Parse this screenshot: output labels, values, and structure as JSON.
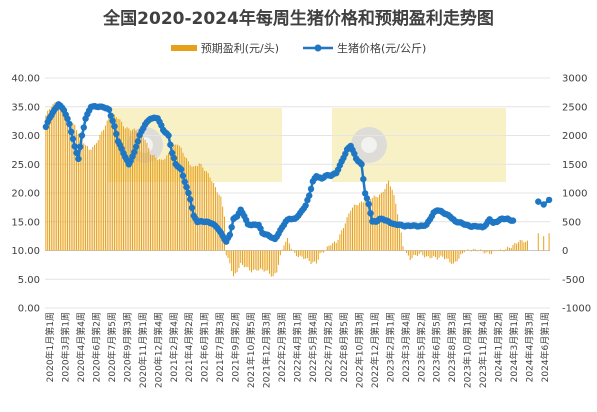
{
  "chart_data": {
    "type": "bar+line",
    "title": "全国2020-2024年每周生猪价格和预期盈利走势图",
    "legend": [
      {
        "name": "预期盈利(元/头)",
        "type": "bar",
        "color": "#E8A018"
      },
      {
        "name": "生猪价格(元/公斤)",
        "type": "line",
        "color": "#1F77C4"
      }
    ],
    "legend_position": "top",
    "y_left": {
      "ylim": [
        0,
        40
      ],
      "ticks": [
        "0.00",
        "5.00",
        "10.00",
        "15.00",
        "20.00",
        "25.00",
        "30.00",
        "35.00",
        "40.00"
      ]
    },
    "y_right": {
      "ylim": [
        -1000,
        3000
      ],
      "ticks": [
        "-1000",
        "-500",
        "0",
        "500",
        "1000",
        "1500",
        "2000",
        "2500",
        "3000"
      ]
    },
    "x_tick_labels": [
      "2020年1月第1周",
      "2020年3月第1周",
      "2020年4月第4周",
      "2020年6月第2周",
      "2020年7月第5周",
      "2020年9月第3周",
      "2020年11月第1周",
      "2020年12月第4周",
      "2021年2月第4周",
      "2021年4月第2周",
      "2021年6月第1周",
      "2021年7月第3周",
      "2021年9月第2周",
      "2021年10月第5周",
      "2021年12月第3周",
      "2022年2月第3周",
      "2022年4月第1周",
      "2022年5月第4周",
      "2022年7月第2周",
      "2022年8月第5周",
      "2022年10月第3周",
      "2022年12月第1周",
      "2023年2月第1周",
      "2023年3月第4周",
      "2023年5月第2周",
      "2023年6月第5周",
      "2023年8月第3周",
      "2023年10月第1周",
      "2023年11月第4周",
      "2024年1月第2周",
      "2024年3月第1周",
      "2024年4月第3周",
      "2024年6月第1周"
    ],
    "price_anchors": [
      [
        0,
        31.5
      ],
      [
        2,
        33
      ],
      [
        5,
        34.5
      ],
      [
        7,
        35.5
      ],
      [
        10,
        34.5
      ],
      [
        13,
        32
      ],
      [
        16,
        28
      ],
      [
        18,
        26
      ],
      [
        20,
        30
      ],
      [
        22,
        33
      ],
      [
        25,
        35
      ],
      [
        28,
        35
      ],
      [
        32,
        35
      ],
      [
        35,
        34.5
      ],
      [
        38,
        31.5
      ],
      [
        40,
        29
      ],
      [
        43,
        27
      ],
      [
        46,
        25
      ],
      [
        49,
        27
      ],
      [
        52,
        30
      ],
      [
        55,
        32
      ],
      [
        58,
        33
      ],
      [
        62,
        33
      ],
      [
        65,
        31
      ],
      [
        68,
        30
      ],
      [
        70,
        27
      ],
      [
        72,
        25
      ],
      [
        75,
        24
      ],
      [
        78,
        21
      ],
      [
        80,
        19
      ],
      [
        82,
        16
      ],
      [
        84,
        15
      ],
      [
        86,
        15
      ],
      [
        89,
        15
      ],
      [
        92,
        14.8
      ],
      [
        95,
        14
      ],
      [
        98,
        12.5
      ],
      [
        100,
        11.5
      ],
      [
        102,
        12.8
      ],
      [
        104,
        15.5
      ],
      [
        106,
        16
      ],
      [
        108,
        17
      ],
      [
        110,
        16
      ],
      [
        112,
        14.5
      ],
      [
        115,
        14.5
      ],
      [
        118,
        14.5
      ],
      [
        120,
        13
      ],
      [
        124,
        12.5
      ],
      [
        127,
        12
      ],
      [
        130,
        13.5
      ],
      [
        133,
        15
      ],
      [
        135,
        15.5
      ],
      [
        138,
        15.5
      ],
      [
        141,
        16.5
      ],
      [
        144,
        17.8
      ],
      [
        146,
        19.5
      ],
      [
        148,
        22
      ],
      [
        150,
        23
      ],
      [
        153,
        22.5
      ],
      [
        155,
        23
      ],
      [
        158,
        23
      ],
      [
        161,
        23.5
      ],
      [
        164,
        25.5
      ],
      [
        167,
        27.5
      ],
      [
        169,
        28.2
      ],
      [
        172,
        26
      ],
      [
        175,
        25
      ],
      [
        177,
        20
      ],
      [
        179,
        18
      ],
      [
        181,
        15
      ],
      [
        183,
        15
      ],
      [
        185,
        15.5
      ],
      [
        187,
        15.5
      ],
      [
        190,
        15
      ],
      [
        193,
        14.5
      ],
      [
        196,
        14.5
      ],
      [
        199,
        14.3
      ],
      [
        203,
        14.3
      ],
      [
        207,
        14.2
      ],
      [
        211,
        14.5
      ],
      [
        215,
        16.5
      ],
      [
        217,
        17
      ],
      [
        219,
        16.8
      ],
      [
        221,
        16.5
      ],
      [
        224,
        16
      ],
      [
        227,
        15
      ],
      [
        230,
        14.8
      ],
      [
        233,
        14.5
      ],
      [
        236,
        14.2
      ],
      [
        239,
        14.2
      ],
      [
        242,
        14
      ],
      [
        244,
        14.5
      ],
      [
        246,
        15.5
      ],
      [
        248,
        14.8
      ],
      [
        250,
        15
      ],
      [
        253,
        15.5
      ],
      [
        256,
        15.5
      ],
      [
        259,
        15.2
      ],
      [
        265,
        15
      ],
      [
        267,
        15.5
      ]
    ],
    "price_gap_after_index": 259,
    "price_after_gap": [
      [
        273,
        18.5
      ],
      [
        276,
        18
      ],
      [
        279,
        18.8
      ]
    ],
    "profit_anchors": [
      [
        0,
        2350
      ],
      [
        3,
        2500
      ],
      [
        5,
        2550
      ],
      [
        8,
        2450
      ],
      [
        12,
        2300
      ],
      [
        16,
        2150
      ],
      [
        20,
        1950
      ],
      [
        24,
        1750
      ],
      [
        27,
        1800
      ],
      [
        30,
        2000
      ],
      [
        33,
        2200
      ],
      [
        36,
        2350
      ],
      [
        40,
        2300
      ],
      [
        44,
        2150
      ],
      [
        48,
        2100
      ],
      [
        52,
        2050
      ],
      [
        55,
        1950
      ],
      [
        58,
        1700
      ],
      [
        61,
        1600
      ],
      [
        64,
        1550
      ],
      [
        67,
        1650
      ],
      [
        70,
        1800
      ],
      [
        73,
        1850
      ],
      [
        76,
        1700
      ],
      [
        79,
        1550
      ],
      [
        82,
        1450
      ],
      [
        85,
        1500
      ],
      [
        88,
        1400
      ],
      [
        91,
        1300
      ],
      [
        94,
        1100
      ],
      [
        97,
        900
      ],
      [
        99,
        600
      ],
      [
        100,
        -100
      ],
      [
        102,
        -200
      ],
      [
        104,
        -450
      ],
      [
        106,
        -350
      ],
      [
        108,
        -250
      ],
      [
        111,
        -300
      ],
      [
        114,
        -350
      ],
      [
        117,
        -320
      ],
      [
        120,
        -350
      ],
      [
        123,
        -380
      ],
      [
        126,
        -450
      ],
      [
        128,
        -350
      ],
      [
        130,
        -100
      ],
      [
        132,
        100
      ],
      [
        134,
        180
      ],
      [
        136,
        50
      ],
      [
        138,
        -50
      ],
      [
        141,
        -100
      ],
      [
        144,
        -150
      ],
      [
        147,
        -220
      ],
      [
        150,
        -200
      ],
      [
        152,
        -50
      ],
      [
        155,
        0
      ],
      [
        158,
        100
      ],
      [
        161,
        150
      ],
      [
        164,
        350
      ],
      [
        167,
        550
      ],
      [
        169,
        700
      ],
      [
        172,
        800
      ],
      [
        175,
        850
      ],
      [
        178,
        900
      ],
      [
        181,
        900
      ],
      [
        184,
        950
      ],
      [
        186,
        1000
      ],
      [
        188,
        1100
      ],
      [
        190,
        1200
      ],
      [
        192,
        1050
      ],
      [
        194,
        800
      ],
      [
        196,
        500
      ],
      [
        198,
        100
      ],
      [
        200,
        -50
      ],
      [
        202,
        -150
      ],
      [
        205,
        -100
      ],
      [
        208,
        -50
      ],
      [
        211,
        -100
      ],
      [
        214,
        -120
      ],
      [
        217,
        -150
      ],
      [
        220,
        -100
      ],
      [
        223,
        -150
      ],
      [
        226,
        -250
      ],
      [
        229,
        -150
      ],
      [
        232,
        0
      ],
      [
        235,
        20
      ],
      [
        238,
        0
      ],
      [
        241,
        -20
      ],
      [
        244,
        -30
      ],
      [
        247,
        -30
      ],
      [
        250,
        0
      ],
      [
        253,
        -30
      ],
      [
        256,
        50
      ],
      [
        259,
        100
      ],
      [
        262,
        150
      ],
      [
        265,
        150
      ],
      [
        267,
        150
      ]
    ],
    "profit_gap_after_index": 267,
    "profit_after_gap": [
      [
        273,
        300
      ],
      [
        276,
        250
      ],
      [
        279,
        300
      ]
    ]
  }
}
